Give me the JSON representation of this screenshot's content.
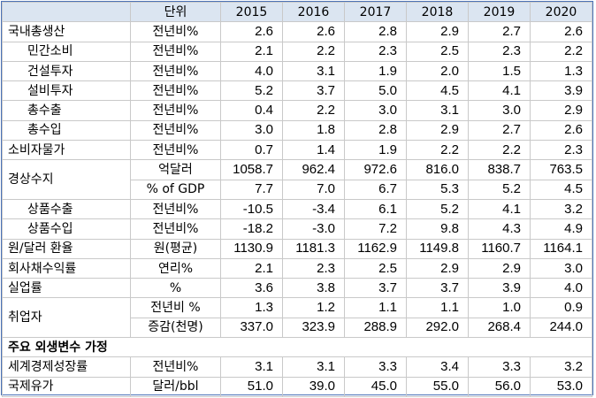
{
  "header": {
    "unit": "단위",
    "years": [
      "2015",
      "2016",
      "2017",
      "2018",
      "2019",
      "2020"
    ]
  },
  "rows": [
    {
      "label": "국내총생산",
      "unit": "전년비%",
      "values": [
        "2.6",
        "2.6",
        "2.8",
        "2.9",
        "2.7",
        "2.6"
      ]
    },
    {
      "label": "민간소비",
      "unit": "전년비%",
      "values": [
        "2.1",
        "2.2",
        "2.3",
        "2.5",
        "2.3",
        "2.2"
      ]
    },
    {
      "label": "건설투자",
      "unit": "전년비%",
      "values": [
        "4.0",
        "3.1",
        "1.9",
        "2.0",
        "1.5",
        "1.3"
      ]
    },
    {
      "label": "설비투자",
      "unit": "전년비%",
      "values": [
        "5.2",
        "3.7",
        "5.0",
        "4.5",
        "4.1",
        "3.9"
      ]
    },
    {
      "label": "총수출",
      "unit": "전년비%",
      "values": [
        "0.4",
        "2.2",
        "3.0",
        "3.1",
        "3.0",
        "2.9"
      ]
    },
    {
      "label": "총수입",
      "unit": "전년비%",
      "values": [
        "3.0",
        "1.8",
        "2.8",
        "2.9",
        "2.7",
        "2.6"
      ]
    },
    {
      "label": "소비자물가",
      "unit": "전년비%",
      "values": [
        "0.7",
        "1.4",
        "1.9",
        "2.2",
        "2.2",
        "2.3"
      ]
    },
    {
      "label": "경상수지",
      "unit": "억달러",
      "values": [
        "1058.7",
        "962.4",
        "972.6",
        "816.0",
        "838.7",
        "763.5"
      ]
    },
    {
      "label": "",
      "unit": "% of GDP",
      "values": [
        "7.7",
        "7.0",
        "6.7",
        "5.3",
        "5.2",
        "4.5"
      ]
    },
    {
      "label": "상품수출",
      "unit": "전년비%",
      "values": [
        "-10.5",
        "-3.4",
        "6.1",
        "5.2",
        "4.1",
        "3.2"
      ]
    },
    {
      "label": "상품수입",
      "unit": "전년비%",
      "values": [
        "-18.2",
        "-3.0",
        "7.2",
        "9.8",
        "4.3",
        "4.9"
      ]
    },
    {
      "label": "원/달러 환율",
      "unit": "원(평균)",
      "values": [
        "1130.9",
        "1181.3",
        "1162.9",
        "1149.8",
        "1160.7",
        "1164.1"
      ]
    },
    {
      "label": "회사채수익률",
      "unit": "연리%",
      "values": [
        "2.1",
        "2.3",
        "2.5",
        "2.9",
        "2.9",
        "3.0"
      ]
    },
    {
      "label": "실업률",
      "unit": "%",
      "values": [
        "3.6",
        "3.8",
        "3.7",
        "3.7",
        "3.9",
        "4.0"
      ]
    },
    {
      "label": "취업자",
      "unit": "전년비 %",
      "values": [
        "1.3",
        "1.2",
        "1.1",
        "1.1",
        "1.0",
        "0.9"
      ]
    },
    {
      "label": "",
      "unit": "증감(천명)",
      "values": [
        "337.0",
        "323.9",
        "288.9",
        "292.0",
        "268.4",
        "244.0"
      ]
    }
  ],
  "section_title": "주요 외생변수 가정",
  "assumptions": [
    {
      "label": "세계경제성장률",
      "unit": "전년비%",
      "values": [
        "3.1",
        "3.1",
        "3.3",
        "3.4",
        "3.3",
        "3.2"
      ]
    },
    {
      "label": "국제유가",
      "unit": "달러/bbl",
      "values": [
        "51.0",
        "39.0",
        "45.0",
        "55.0",
        "56.0",
        "53.0"
      ]
    }
  ]
}
